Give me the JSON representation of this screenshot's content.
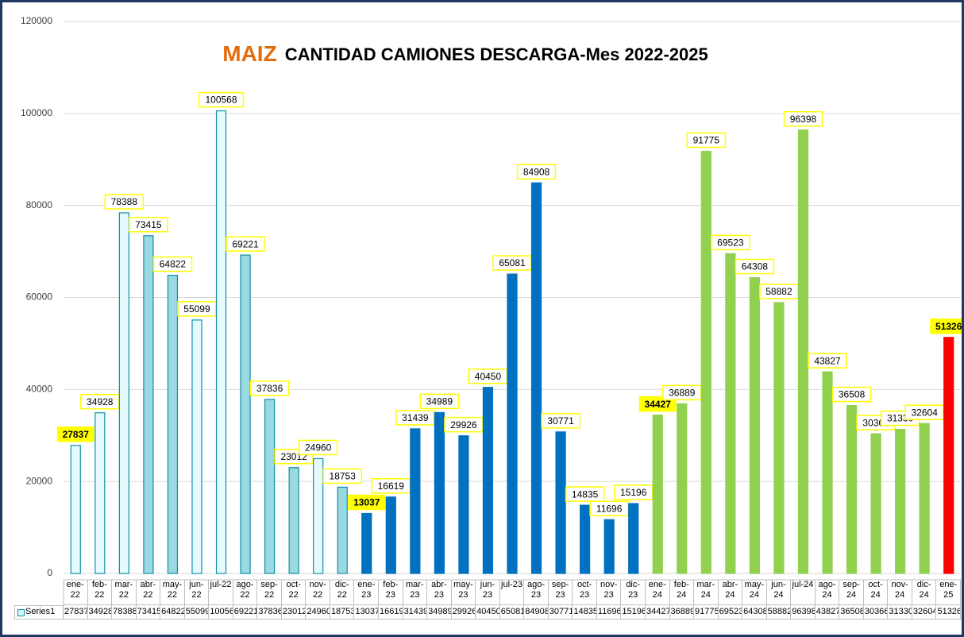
{
  "chart_data": {
    "type": "bar",
    "title_parts": [
      "MAIZ",
      "CANTIDAD CAMIONES DESCARGA-Mes 2022-2025"
    ],
    "categories": [
      "ene-22",
      "feb-22",
      "mar-22",
      "abr-22",
      "may-22",
      "jun-22",
      "jul-22",
      "ago-22",
      "sep-22",
      "oct-22",
      "nov-22",
      "dic-22",
      "ene-23",
      "feb-23",
      "mar-23",
      "abr-23",
      "may-23",
      "jun-23",
      "jul-23",
      "ago-23",
      "sep-23",
      "oct-23",
      "nov-23",
      "dic-23",
      "ene-24",
      "feb-24",
      "mar-24",
      "abr-24",
      "may-24",
      "jun-24",
      "jul-24",
      "ago-24",
      "sep-24",
      "oct-24",
      "nov-24",
      "dic-24",
      "ene-25"
    ],
    "series": [
      {
        "name": "Series1",
        "color": "#d6f5fa",
        "values": [
          27837,
          34928,
          78388,
          73415,
          64822,
          55099,
          100568,
          69221,
          37836,
          23012,
          24960,
          18753,
          13037,
          16619,
          31439,
          34989,
          29926,
          40450,
          65081,
          84908,
          30771,
          14835,
          11696,
          15196,
          34427,
          36889,
          91775,
          69523,
          64308,
          58882,
          96398,
          43827,
          36508,
          30366,
          31330,
          32604,
          51326
        ]
      }
    ],
    "colors": [
      "#e4fafd",
      "#e4fafd",
      "#e4fafd",
      "#9ad9e0",
      "#9ad9e0",
      "#e4fafd",
      "#e4fafd",
      "#9ad9e0",
      "#9ad9e0",
      "#9ad9e0",
      "#e4fafd",
      "#9ad9e0",
      "#0070c0",
      "#0070c0",
      "#0070c0",
      "#0070c0",
      "#0070c0",
      "#0070c0",
      "#0070c0",
      "#0070c0",
      "#0070c0",
      "#0070c0",
      "#0070c0",
      "#0070c0",
      "#92d050",
      "#92d050",
      "#92d050",
      "#92d050",
      "#92d050",
      "#92d050",
      "#92d050",
      "#92d050",
      "#92d050",
      "#92d050",
      "#92d050",
      "#92d050",
      "#ff0000"
    ],
    "label_highlight": [
      true,
      false,
      false,
      false,
      false,
      false,
      false,
      false,
      false,
      false,
      false,
      false,
      true,
      false,
      false,
      false,
      false,
      false,
      false,
      false,
      false,
      false,
      false,
      false,
      true,
      false,
      false,
      false,
      false,
      false,
      false,
      false,
      false,
      false,
      false,
      false,
      true
    ],
    "ylim": [
      0,
      120000
    ],
    "yticks": [
      0,
      20000,
      40000,
      60000,
      80000,
      100000,
      120000
    ],
    "grid": true
  }
}
